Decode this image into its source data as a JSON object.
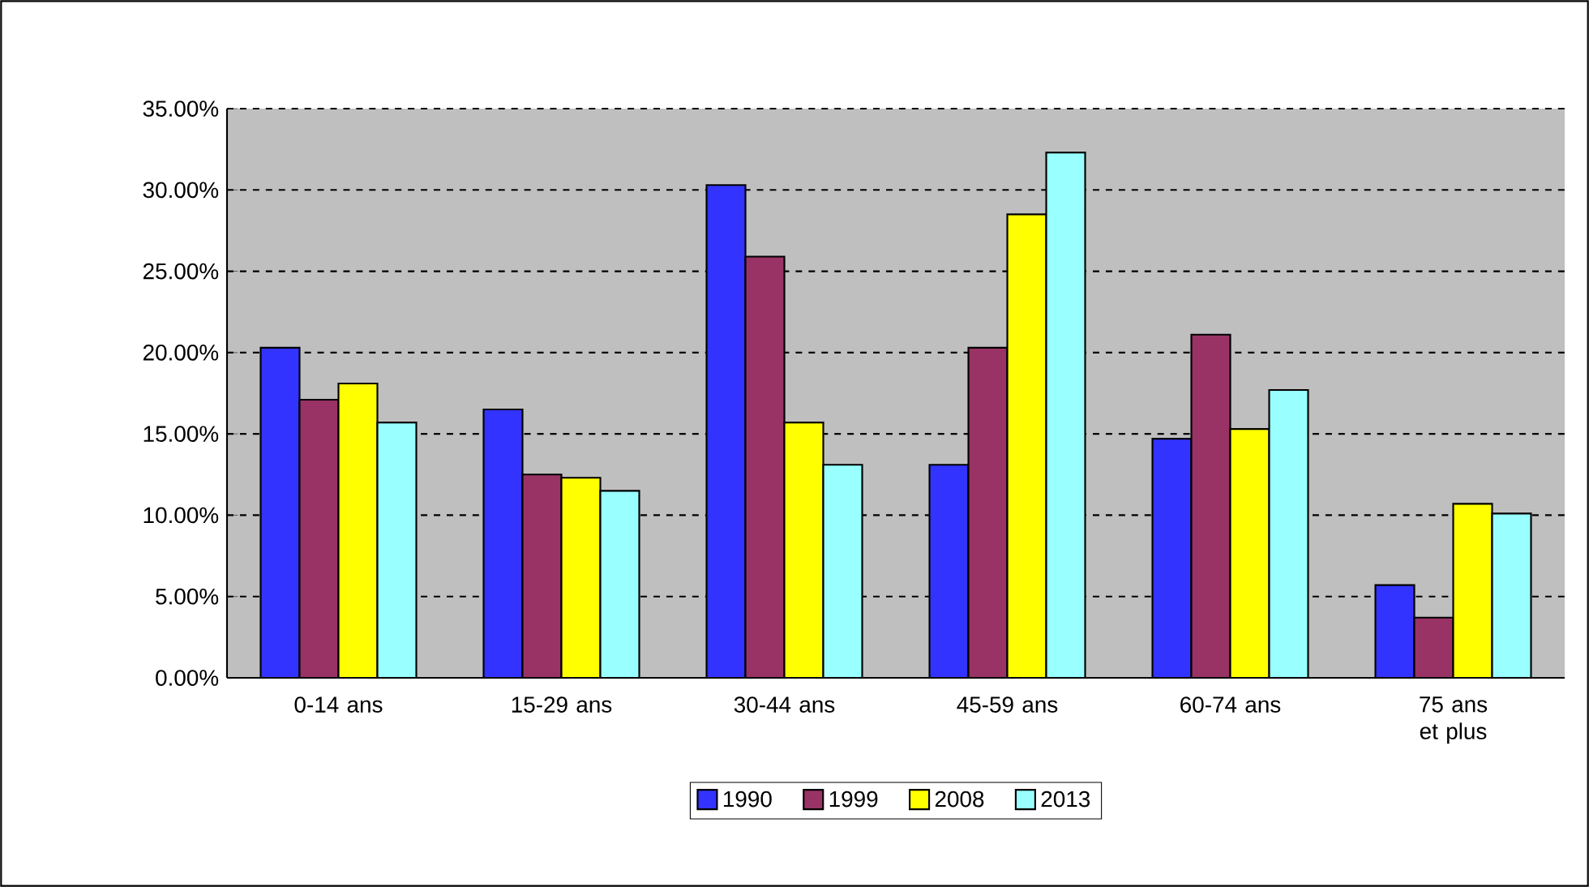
{
  "chart_data": {
    "type": "bar",
    "categories": [
      "0-14 ans",
      "15-29 ans",
      "30-44 ans",
      "45-59 ans",
      "60-74 ans",
      "75 ans et plus"
    ],
    "series": [
      {
        "name": "1990",
        "color": "#3333ff",
        "values": [
          20.3,
          16.5,
          30.3,
          13.1,
          14.7,
          5.7
        ]
      },
      {
        "name": "1999",
        "color": "#993366",
        "values": [
          17.1,
          12.5,
          25.9,
          20.3,
          21.1,
          3.7
        ]
      },
      {
        "name": "2008",
        "color": "#ffff00",
        "values": [
          18.1,
          12.3,
          15.7,
          28.5,
          15.3,
          10.7
        ]
      },
      {
        "name": "2013",
        "color": "#99ffff",
        "values": [
          15.7,
          11.5,
          13.1,
          32.3,
          17.7,
          10.1
        ]
      }
    ],
    "ylim": [
      0,
      35
    ],
    "yticks": [
      {
        "value": 0,
        "label": "0.00%"
      },
      {
        "value": 5,
        "label": "5.00%"
      },
      {
        "value": 10,
        "label": "10.00%"
      },
      {
        "value": 15,
        "label": "15.00%"
      },
      {
        "value": 20,
        "label": "20.00%"
      },
      {
        "value": 25,
        "label": "25.00%"
      },
      {
        "value": 30,
        "label": "30.00%"
      },
      {
        "value": 35,
        "label": "35.00%"
      }
    ],
    "grid": "y",
    "legend": "bottom"
  }
}
